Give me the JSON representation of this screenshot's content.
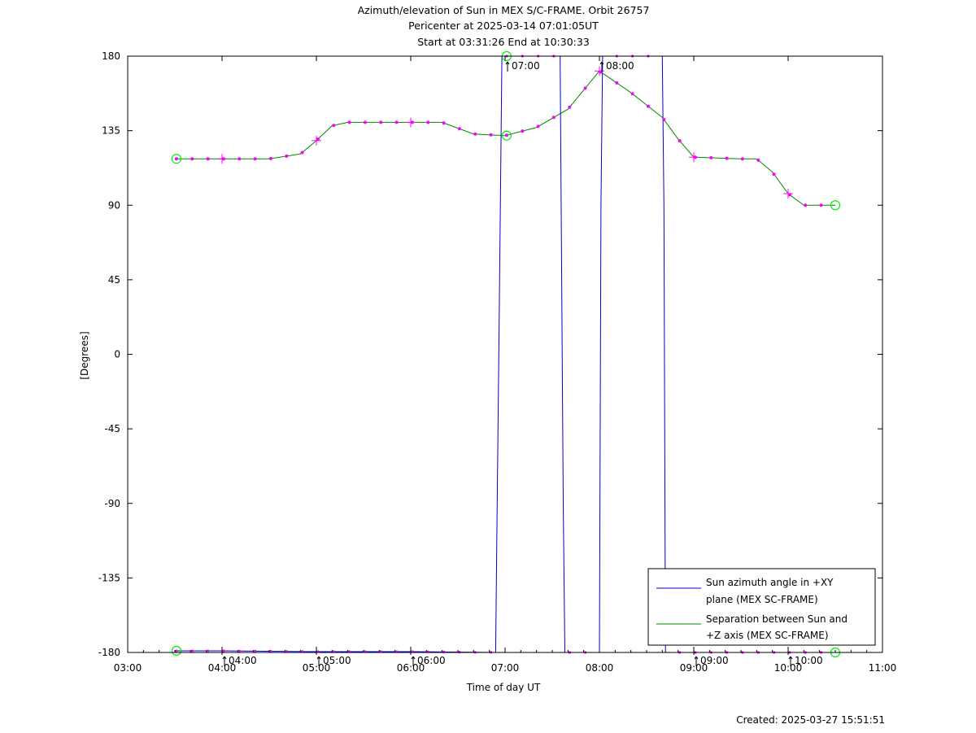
{
  "chart_data": {
    "type": "line",
    "title_lines": [
      "Azimuth/elevation of Sun in MEX S/C-FRAME.  Orbit 26757",
      "Pericenter at 2025-03-14 07:01:05UT",
      "Start at 03:31:26 End at 10:30:33"
    ],
    "xlabel": "Time of day UT",
    "ylabel": "[Degrees]",
    "xlim": [
      "03:00",
      "11:00"
    ],
    "ylim": [
      -180,
      180
    ],
    "x_tick_labels": [
      "03:00",
      "04:00",
      "05:00",
      "06:00",
      "07:00",
      "08:00",
      "09:00",
      "10:00",
      "11:00"
    ],
    "y_tick_labels": [
      "180",
      "135",
      "90",
      "45",
      "0",
      "-45",
      "-90",
      "-135",
      "-180"
    ],
    "y_ticks": [
      180,
      135,
      90,
      45,
      0,
      -45,
      -90,
      -135,
      -180
    ],
    "hour_marker_labels": [
      {
        "t": "04:00",
        "text": "04:00",
        "curve": "bottom"
      },
      {
        "t": "05:00",
        "text": "05:00",
        "curve": "bottom"
      },
      {
        "t": "06:00",
        "text": "06:00",
        "curve": "bottom"
      },
      {
        "t": "07:00",
        "text": "07:00",
        "curve": "top"
      },
      {
        "t": "08:00",
        "text": "08:00",
        "curve": "top"
      },
      {
        "t": "09:00",
        "text": "09:00",
        "curve": "bottom"
      },
      {
        "t": "10:00",
        "text": "10:00",
        "curve": "bottom"
      }
    ],
    "legend_position": "bottom-right",
    "series": [
      {
        "name": "Sun azimuth angle in +XY plane (MEX SC-FRAME)",
        "legend_lines": [
          "Sun azimuth angle in +XY",
          "plane (MEX SC-FRAME)"
        ],
        "color": "#0000cc",
        "points": [
          [
            "03:31",
            -179
          ],
          [
            "04:00",
            -179
          ],
          [
            "05:00",
            -179.5
          ],
          [
            "06:00",
            -179.5
          ],
          [
            "06:54",
            -180
          ],
          [
            "06:55",
            -90
          ],
          [
            "06:56",
            0
          ],
          [
            "06:58",
            180
          ],
          [
            "07:00",
            180
          ],
          [
            "07:30",
            180
          ],
          [
            "07:35",
            180
          ],
          [
            "07:37",
            -90
          ],
          [
            "07:38",
            -180
          ],
          [
            "08:00",
            -180
          ],
          [
            "08:01",
            90
          ],
          [
            "08:02",
            180
          ],
          [
            "08:30",
            180
          ],
          [
            "08:40",
            180
          ],
          [
            "08:41",
            90
          ],
          [
            "08:42",
            -180
          ],
          [
            "09:00",
            -180
          ],
          [
            "10:00",
            -180
          ],
          [
            "10:30",
            -180
          ]
        ]
      },
      {
        "name": "Separation between Sun and +Z axis (MEX SC-FRAME)",
        "legend_lines": [
          "Separation between Sun and",
          "+Z axis (MEX SC-FRAME)"
        ],
        "color": "#008800",
        "points": [
          [
            "03:31",
            118
          ],
          [
            "04:00",
            118
          ],
          [
            "04:30",
            118
          ],
          [
            "04:50",
            121
          ],
          [
            "05:00",
            129
          ],
          [
            "05:10",
            138
          ],
          [
            "05:20",
            140
          ],
          [
            "05:50",
            140
          ],
          [
            "06:00",
            140
          ],
          [
            "06:20",
            140
          ],
          [
            "06:40",
            133
          ],
          [
            "07:00",
            132
          ],
          [
            "07:20",
            137
          ],
          [
            "07:40",
            148
          ],
          [
            "08:00",
            171
          ],
          [
            "08:20",
            158
          ],
          [
            "08:40",
            143
          ],
          [
            "08:50",
            130
          ],
          [
            "09:00",
            119
          ],
          [
            "09:30",
            118
          ],
          [
            "09:40",
            118
          ],
          [
            "09:50",
            110
          ],
          [
            "10:00",
            97
          ],
          [
            "10:10",
            90
          ],
          [
            "10:30",
            90
          ]
        ]
      }
    ],
    "marker_color": "#ff00ff",
    "endpoint_marker_color": "#00ee00"
  },
  "footer": {
    "created": "Created: 2025-03-27 15:51:51"
  }
}
